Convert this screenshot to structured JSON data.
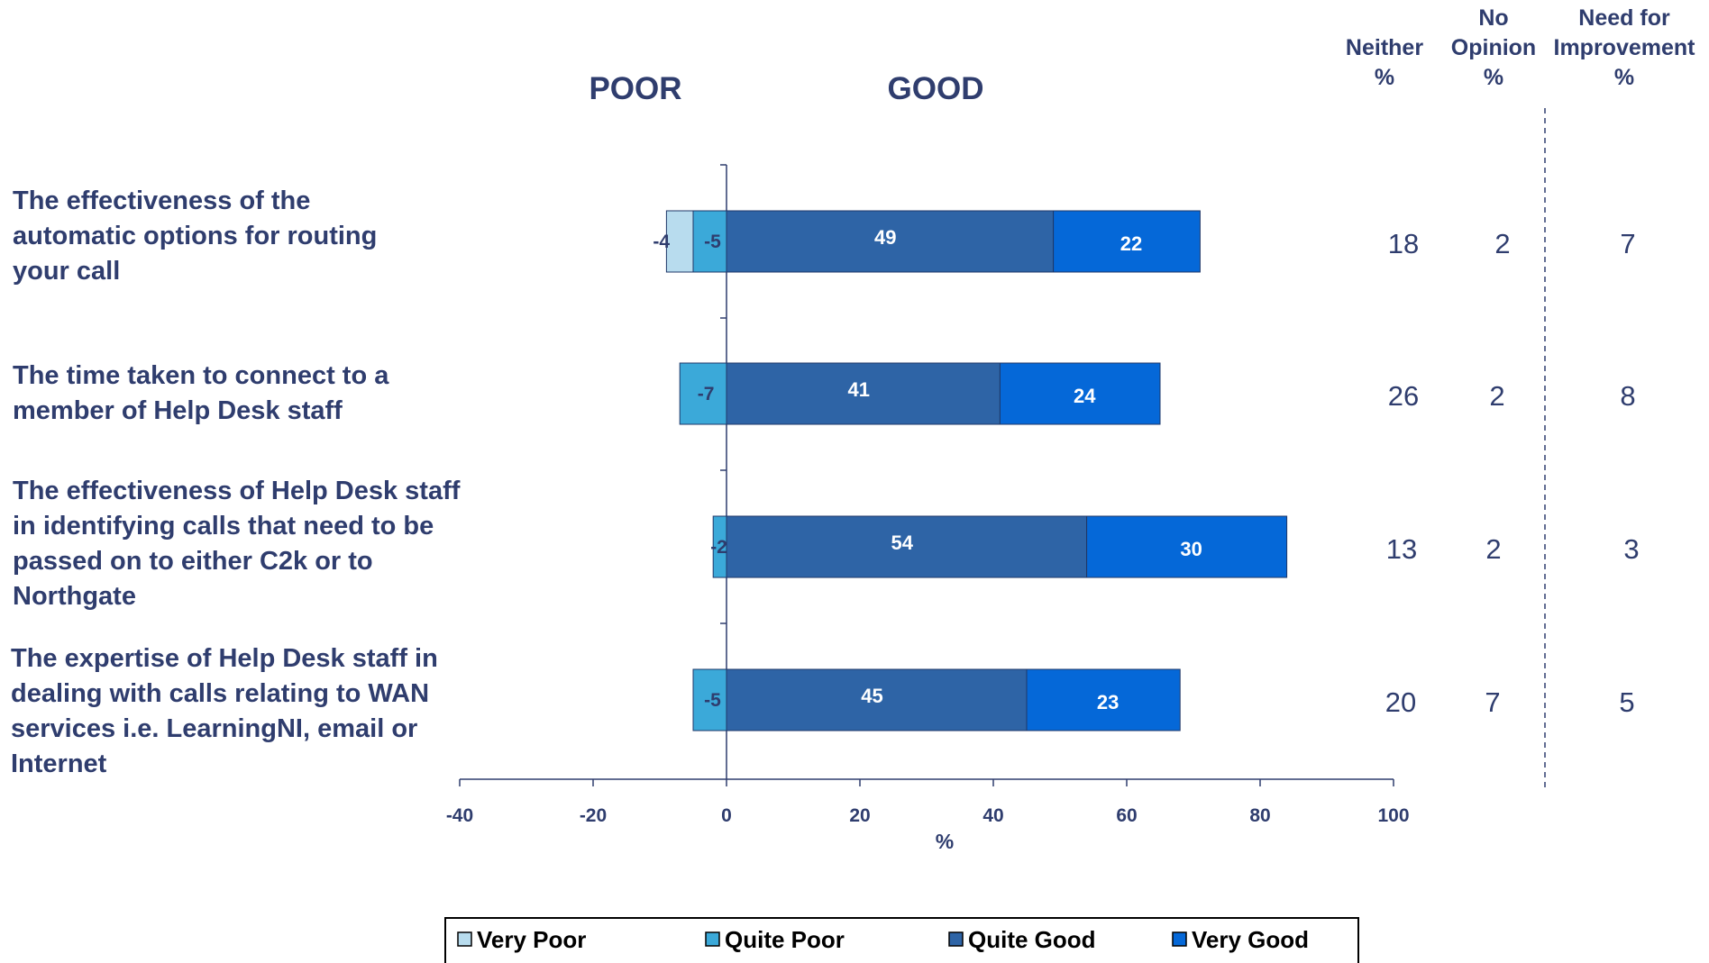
{
  "chart_data": {
    "type": "bar",
    "stacked": true,
    "orientation": "horizontal",
    "header_left": "POOR",
    "header_right": "GOOD",
    "xlabel": "%",
    "xlim": [
      -40,
      100
    ],
    "xticks": [
      "-40",
      "-20",
      "0",
      "20",
      "40",
      "60",
      "80",
      "100"
    ],
    "categories": [
      "The effectiveness of the automatic options for routing your call",
      "The time taken to connect to a member of Help Desk staff",
      "The effectiveness of Help Desk staff in identifying calls that need to be passed on to either C2k or to Northgate",
      "The expertise of Help Desk staff in dealing with calls relating to WAN services i.e. LearningNI, email or Internet"
    ],
    "category_lines": [
      [
        "The effectiveness of the",
        "automatic options for routing",
        "your call"
      ],
      [
        "The time taken to connect to a",
        "member of Help Desk staff"
      ],
      [
        "The effectiveness of Help Desk staff",
        "in identifying calls that need to be",
        "passed on to either C2k or to",
        "Northgate"
      ],
      [
        "The expertise of Help Desk staff in",
        "dealing with calls relating to WAN",
        "services i.e. LearningNI, email or",
        "Internet"
      ]
    ],
    "series": [
      {
        "name": "Very Poor",
        "color": "#b8dcee",
        "values": [
          -4,
          0,
          0,
          0
        ]
      },
      {
        "name": "Quite Poor",
        "color": "#3ba9d9",
        "values": [
          -5,
          -7,
          -2,
          -5
        ]
      },
      {
        "name": "Quite Good",
        "color": "#2e64a6",
        "values": [
          49,
          41,
          54,
          45
        ]
      },
      {
        "name": "Very Good",
        "color": "#0568d8",
        "values": [
          22,
          24,
          30,
          23
        ]
      }
    ],
    "extra_columns": [
      {
        "label_lines": [
          "Neither",
          "%"
        ],
        "values": [
          "18",
          "26",
          "13",
          "20"
        ]
      },
      {
        "label_lines": [
          "No",
          "Opinion",
          "%"
        ],
        "values": [
          "2",
          "2",
          "2",
          "7"
        ]
      },
      {
        "label_lines": [
          "Need for",
          "Improvement",
          "%"
        ],
        "values": [
          "7",
          "8",
          "3",
          "5"
        ]
      }
    ],
    "legend": [
      "Very Poor",
      "Quite Poor",
      "Quite Good",
      "Very Good"
    ],
    "legend_position": "bottom",
    "grid": false
  },
  "colors": {
    "text": "#2f3d6e",
    "axis": "#2f3d6e",
    "bar_label": "#ffffff",
    "neg_label": "#2f3d6e",
    "bar_outline": "#1f3768"
  }
}
